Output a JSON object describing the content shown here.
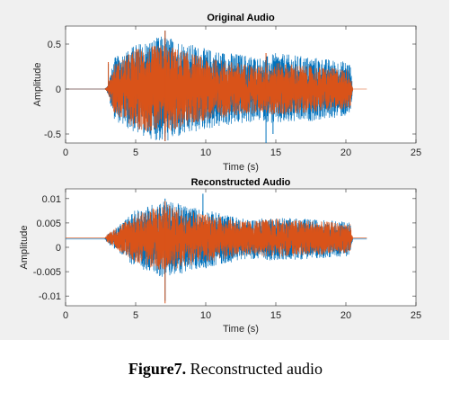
{
  "caption": {
    "label": "Figure7.",
    "text": " Reconstructed audio"
  },
  "colors": {
    "original": "#0072BD",
    "reconstructed": "#D95319",
    "panel": "#f0f0f0"
  },
  "chart_data": [
    {
      "type": "line",
      "title": "Original Audio",
      "xlabel": "Time (s)",
      "ylabel": "Amplitude",
      "xlim": [
        0,
        25
      ],
      "ylim": [
        -0.6,
        0.7
      ],
      "xticks": [
        0,
        5,
        10,
        15,
        20,
        25
      ],
      "xtick_labels": [
        "0",
        "5",
        "10",
        "15",
        "20",
        "25"
      ],
      "yticks": [
        -0.5,
        0,
        0.5
      ],
      "ytick_labels": [
        "-0.5",
        "0",
        "0.5"
      ],
      "grid": false,
      "series": [
        {
          "x_range": [
            0,
            20.5
          ],
          "envelope": [
            [
              0,
              0
            ],
            [
              2.8,
              0
            ],
            [
              3,
              0.05
            ],
            [
              3.5,
              0.35
            ],
            [
              5,
              0.5
            ],
            [
              7,
              0.6
            ],
            [
              10,
              0.45
            ],
            [
              12,
              0.4
            ],
            [
              13,
              0.38
            ],
            [
              14,
              0.35
            ],
            [
              15,
              0.4
            ],
            [
              18,
              0.35
            ],
            [
              20.3,
              0.3
            ],
            [
              20.5,
              0
            ]
          ],
          "peaks": [
            [
              3.05,
              0.28
            ],
            [
              7.1,
              0.65
            ],
            [
              7.1,
              -0.58
            ],
            [
              14.3,
              -0.6
            ],
            [
              14.8,
              -0.5
            ]
          ]
        },
        {
          "x_range": [
            0,
            21.5
          ],
          "envelope": [
            [
              0,
              0
            ],
            [
              2.8,
              0
            ],
            [
              3,
              0.04
            ],
            [
              3.5,
              0.28
            ],
            [
              5,
              0.45
            ],
            [
              7,
              0.5
            ],
            [
              10,
              0.35
            ],
            [
              12,
              0.3
            ],
            [
              13,
              0.28
            ],
            [
              14,
              0.26
            ],
            [
              15,
              0.3
            ],
            [
              18,
              0.25
            ],
            [
              20.3,
              0.22
            ],
            [
              20.5,
              0
            ],
            [
              21.5,
              0
            ]
          ],
          "peaks": [
            [
              3.05,
              0.3
            ],
            [
              7.1,
              0.65
            ],
            [
              7.1,
              -0.58
            ],
            [
              14.3,
              0.4
            ]
          ]
        }
      ]
    },
    {
      "type": "line",
      "title": "Reconstructed Audio",
      "xlabel": "Time (s)",
      "ylabel": "Amplitude",
      "xlim": [
        0,
        25
      ],
      "ylim": [
        -0.012,
        0.012
      ],
      "xticks": [
        0,
        5,
        10,
        15,
        20,
        25
      ],
      "xtick_labels": [
        "0",
        "5",
        "10",
        "15",
        "20",
        "25"
      ],
      "yticks": [
        -0.01,
        -0.005,
        0,
        0.005,
        0.01
      ],
      "ytick_labels": [
        "-0.01",
        "-0.005",
        "0",
        "0.005",
        "0.01"
      ],
      "grid": false,
      "series": [
        {
          "x_range": [
            0,
            21.5
          ],
          "offset": 0.0017,
          "envelope": [
            [
              0,
              0
            ],
            [
              2.8,
              0
            ],
            [
              3,
              0.001
            ],
            [
              3.5,
              0.002
            ],
            [
              5,
              0.006
            ],
            [
              7,
              0.008
            ],
            [
              10,
              0.006
            ],
            [
              13,
              0.004
            ],
            [
              15,
              0.0045
            ],
            [
              18,
              0.004
            ],
            [
              20.3,
              0.0035
            ],
            [
              20.5,
              0
            ],
            [
              21.5,
              0
            ]
          ],
          "peaks": [
            [
              7.1,
              -0.011
            ],
            [
              7.1,
              0.01
            ],
            [
              9.8,
              0.011
            ]
          ]
        },
        {
          "x_range": [
            0,
            21.5
          ],
          "offset": 0.0019,
          "envelope": [
            [
              0,
              0
            ],
            [
              2.8,
              0
            ],
            [
              3,
              0.001
            ],
            [
              3.5,
              0.002
            ],
            [
              5,
              0.005
            ],
            [
              7,
              0.007
            ],
            [
              10,
              0.005
            ],
            [
              13,
              0.0035
            ],
            [
              15,
              0.004
            ],
            [
              18,
              0.0035
            ],
            [
              20.3,
              0.003
            ],
            [
              20.5,
              0
            ],
            [
              21.5,
              0
            ]
          ],
          "peaks": [
            [
              7.1,
              -0.0115
            ],
            [
              7.1,
              0.0095
            ]
          ]
        }
      ]
    }
  ]
}
